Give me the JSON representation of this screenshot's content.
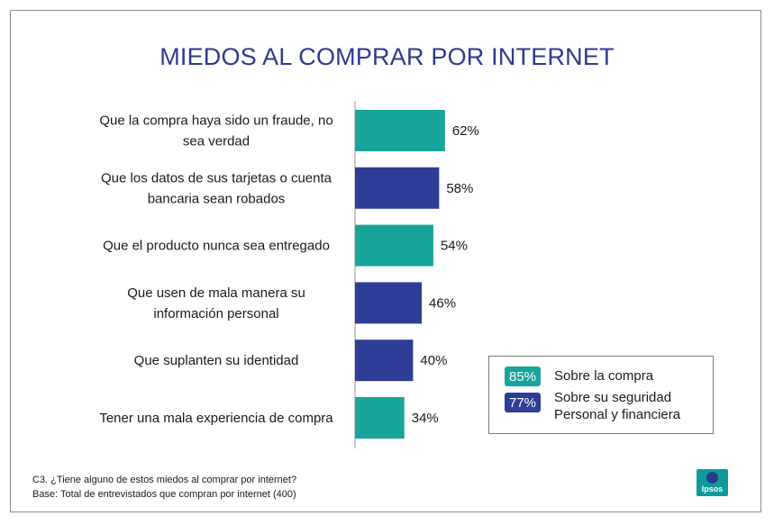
{
  "chart_data": {
    "type": "bar",
    "orientation": "horizontal",
    "title": "MIEDOS AL COMPRAR POR INTERNET",
    "categories": [
      [
        "Que la compra haya sido un fraude, no",
        "sea verdad"
      ],
      [
        "Que los datos de sus tarjetas o cuenta",
        "bancaria sean robados"
      ],
      [
        "Que el producto nunca sea entregado"
      ],
      [
        "Que usen de mala manera su",
        "información personal"
      ],
      [
        "Que suplanten su identidad"
      ],
      [
        "Tener una mala experiencia de compra"
      ]
    ],
    "values": [
      62,
      58,
      54,
      46,
      40,
      34
    ],
    "value_labels": [
      "62%",
      "58%",
      "54%",
      "46%",
      "40%",
      "34%"
    ],
    "bar_groups": [
      "compra",
      "seguridad",
      "compra",
      "seguridad",
      "seguridad",
      "compra"
    ],
    "xlim": [
      0,
      100
    ],
    "grid": false
  },
  "colors": {
    "compra": "#17a49b",
    "seguridad": "#2e3d95",
    "title": "#2e3a8c"
  },
  "legend": {
    "items": [
      {
        "badge": "85%",
        "lines": [
          "Sobre la compra"
        ],
        "group": "compra"
      },
      {
        "badge": "77%",
        "lines": [
          "Sobre su seguridad",
          "Personal y financiera"
        ],
        "group": "seguridad"
      }
    ]
  },
  "footnote": {
    "question": "C3. ¿Tiene alguno de estos miedos al comprar por internet?",
    "base": "Base: Total de entrevistados que compran por internet (400)"
  },
  "logo": {
    "text": "Ipsos"
  }
}
